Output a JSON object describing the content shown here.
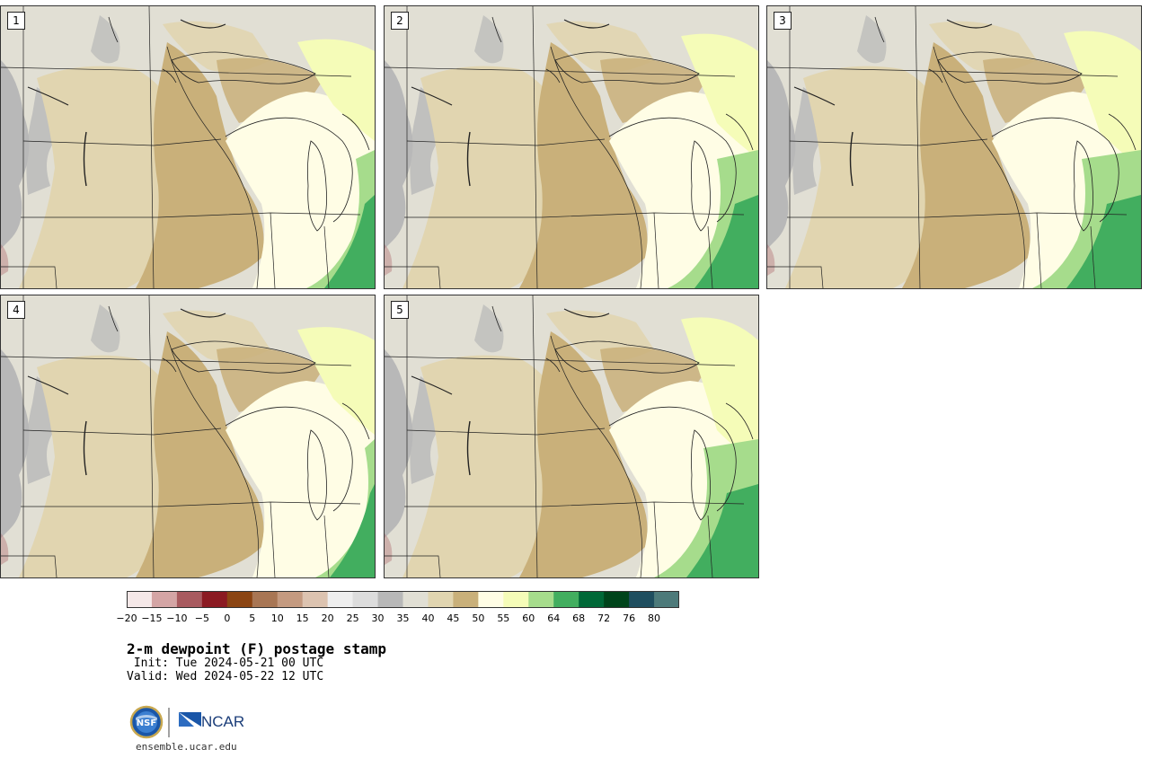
{
  "panels": [
    {
      "label": "1"
    },
    {
      "label": "2"
    },
    {
      "label": "3"
    },
    {
      "label": "4"
    },
    {
      "label": "5"
    }
  ],
  "colorbar": {
    "ticks": [
      "−20",
      "−15",
      "−10",
      "−5",
      "0",
      "5",
      "10",
      "15",
      "20",
      "25",
      "30",
      "35",
      "40",
      "45",
      "50",
      "55",
      "60",
      "64",
      "68",
      "72",
      "76",
      "80"
    ],
    "colors": [
      "#f5e8e8",
      "#d4a5a5",
      "#a85a5f",
      "#8b1a22",
      "#8b4513",
      "#a87654",
      "#c49a80",
      "#dcc3b0",
      "#eeeeee",
      "#dcdcdc",
      "#b8b8b8",
      "#e1dfd4",
      "#e1d5b0",
      "#c9b07a",
      "#fffde5",
      "#f5fcb8",
      "#a6dc8c",
      "#42ae5f",
      "#006837",
      "#00441b",
      "#1f4e5f",
      "#4d7a7a"
    ]
  },
  "title": "2-m dewpoint (F) postage stamp",
  "init": " Init: Tue 2024-05-21 00 UTC",
  "valid": "Valid: Wed 2024-05-22 12 UTC",
  "logos": {
    "nsf": "NSF",
    "ncar": "NCAR"
  },
  "site": "ensemble.ucar.edu"
}
